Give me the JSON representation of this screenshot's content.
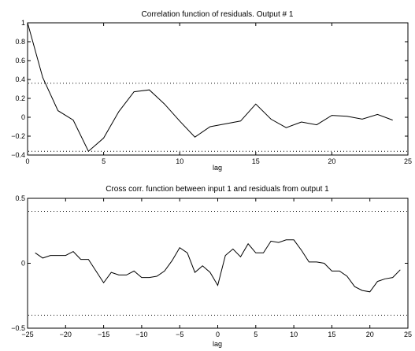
{
  "chart_data": [
    {
      "type": "line",
      "title": "Correlation function of residuals. Output # 1",
      "xlabel": "lag",
      "ylabel": "",
      "xlim": [
        0,
        25
      ],
      "ylim": [
        -0.4,
        1
      ],
      "x_ticks": [
        0,
        5,
        10,
        15,
        20,
        25
      ],
      "y_ticks": [
        -0.4,
        -0.2,
        0,
        0.2,
        0.4,
        0.6,
        0.8,
        1
      ],
      "x_tick_labels": [
        "0",
        "5",
        "10",
        "15",
        "20",
        "25"
      ],
      "y_tick_labels": [
        "−0.4",
        "−0.2",
        "0",
        "0.2",
        "0.4",
        "0.6",
        "0.8",
        "1"
      ],
      "confidence_band": [
        -0.36,
        0.36
      ],
      "grid": false,
      "series": [
        {
          "x": [
            0,
            1,
            2,
            3,
            4,
            5,
            6,
            7,
            8,
            9,
            10,
            11,
            12,
            13,
            14,
            15,
            16,
            17,
            18,
            19,
            20,
            21,
            22,
            23,
            24
          ],
          "y": [
            1.0,
            0.42,
            0.07,
            -0.03,
            -0.36,
            -0.22,
            0.06,
            0.27,
            0.29,
            0.14,
            -0.04,
            -0.21,
            -0.1,
            -0.07,
            -0.04,
            0.14,
            -0.02,
            -0.11,
            -0.05,
            -0.08,
            0.02,
            0.01,
            -0.02,
            0.03,
            -0.03
          ]
        }
      ]
    },
    {
      "type": "line",
      "title": "Cross corr. function between input 1 and residuals from output 1",
      "xlabel": "lag",
      "ylabel": "",
      "xlim": [
        -25,
        25
      ],
      "ylim": [
        -0.5,
        0.5
      ],
      "x_ticks": [
        -25,
        -20,
        -15,
        -10,
        -5,
        0,
        5,
        10,
        15,
        20,
        25
      ],
      "y_ticks": [
        -0.5,
        0,
        0.5
      ],
      "x_tick_labels": [
        "−25",
        "−20",
        "−15",
        "−10",
        "−5",
        "0",
        "5",
        "10",
        "15",
        "20",
        "25"
      ],
      "y_tick_labels": [
        "−0.5",
        "0",
        "0.5"
      ],
      "confidence_band": [
        -0.4,
        0.4
      ],
      "grid": false,
      "series": [
        {
          "x": [
            -24,
            -23,
            -22,
            -21,
            -20,
            -19,
            -18,
            -17,
            -16,
            -15,
            -14,
            -13,
            -12,
            -11,
            -10,
            -9,
            -8,
            -7,
            -6,
            -5,
            -4,
            -3,
            -2,
            -1,
            0,
            1,
            2,
            3,
            4,
            5,
            6,
            7,
            8,
            9,
            10,
            11,
            12,
            13,
            14,
            15,
            16,
            17,
            18,
            19,
            20,
            21,
            22,
            23,
            24
          ],
          "y": [
            0.08,
            0.04,
            0.06,
            0.06,
            0.06,
            0.09,
            0.03,
            0.03,
            -0.06,
            -0.15,
            -0.07,
            -0.09,
            -0.09,
            -0.06,
            -0.11,
            -0.11,
            -0.1,
            -0.06,
            0.02,
            0.12,
            0.08,
            -0.07,
            -0.02,
            -0.07,
            -0.17,
            0.06,
            0.11,
            0.05,
            0.15,
            0.08,
            0.08,
            0.17,
            0.16,
            0.18,
            0.18,
            0.1,
            0.01,
            0.01,
            0.0,
            -0.06,
            -0.06,
            -0.1,
            -0.18,
            -0.21,
            -0.22,
            -0.14,
            -0.12,
            -0.11,
            -0.05
          ]
        }
      ]
    }
  ]
}
